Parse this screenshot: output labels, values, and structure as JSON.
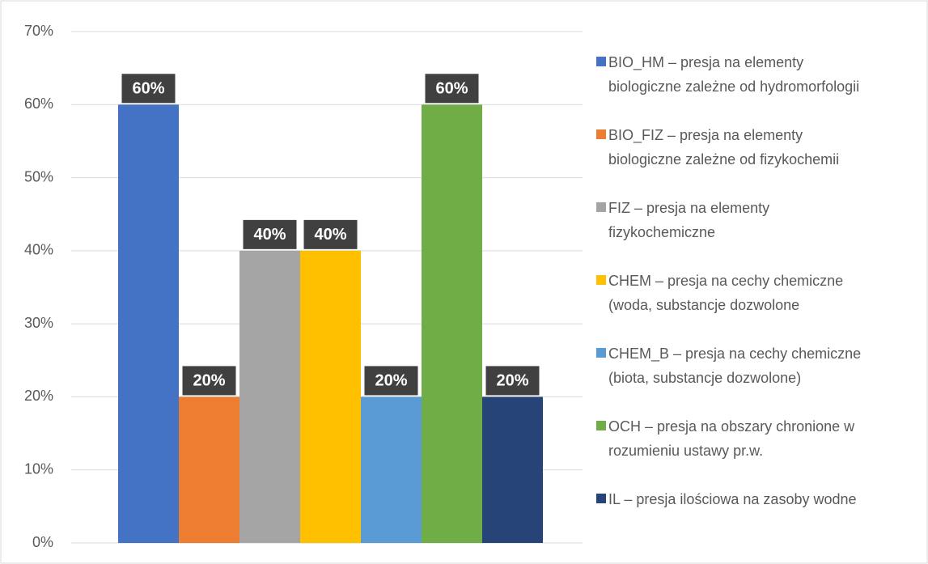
{
  "chart_data": {
    "type": "bar",
    "categories": [
      null
    ],
    "series": [
      {
        "name": "BIO_HM – presja na elementy biologiczne zależne od hydromorfologii",
        "color": "#4472c4",
        "values": [
          60
        ],
        "value_labels": [
          "60%"
        ]
      },
      {
        "name": "BIO_FIZ – presja na elementy biologiczne zależne od fizykochemii",
        "color": "#ed7d31",
        "values": [
          20
        ],
        "value_labels": [
          "20%"
        ]
      },
      {
        "name": "FIZ – presja na elementy fizykochemiczne",
        "color": "#a5a5a5",
        "values": [
          40
        ],
        "value_labels": [
          "40%"
        ]
      },
      {
        "name": "CHEM – presja na cechy chemiczne (woda, substancje dozwolone",
        "color": "#ffc000",
        "values": [
          40
        ],
        "value_labels": [
          "40%"
        ]
      },
      {
        "name": "CHEM_B – presja na cechy chemiczne (biota, substancje dozwolone)",
        "color": "#5b9bd5",
        "values": [
          20
        ],
        "value_labels": [
          "20%"
        ]
      },
      {
        "name": "OCH – presja na obszary chronione w rozumieniu ustawy pr.w.",
        "color": "#70ad47",
        "values": [
          60
        ],
        "value_labels": [
          "60%"
        ]
      },
      {
        "name": "IL – presja ilościowa na zasoby wodne",
        "color": "#264478",
        "values": [
          20
        ],
        "value_labels": [
          "20%"
        ]
      }
    ],
    "ylim": [
      0,
      70
    ],
    "yticks": [
      {
        "value": 0,
        "label": "0%"
      },
      {
        "value": 10,
        "label": "10%"
      },
      {
        "value": 20,
        "label": "20%"
      },
      {
        "value": 30,
        "label": "30%"
      },
      {
        "value": 40,
        "label": "40%"
      },
      {
        "value": 50,
        "label": "50%"
      },
      {
        "value": 60,
        "label": "60%"
      },
      {
        "value": 70,
        "label": "70%"
      }
    ],
    "grid": true,
    "legend": "right"
  }
}
